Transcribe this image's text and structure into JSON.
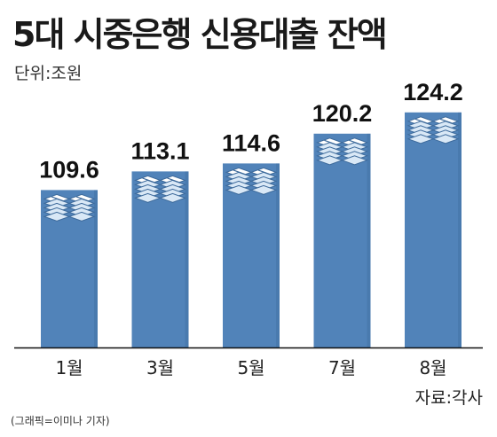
{
  "header": {
    "title": "5대 시중은행 신용대출 잔액",
    "unit": "단위:조원"
  },
  "footer": {
    "source": "자료:각사",
    "credit": "(그래픽=이미나 기자)"
  },
  "colors": {
    "bar": "#5183b9",
    "bar_shadow": "#3d6a9b",
    "baseline": "#111111",
    "money_stack": "#ffffff"
  },
  "icons": {
    "bar_top": "money-stack-icon"
  },
  "chart_data": {
    "type": "bar",
    "title": "5대 시중은행 신용대출 잔액",
    "ylabel": "",
    "xlabel": "",
    "categories": [
      "1월",
      "3월",
      "5월",
      "7월",
      "8월"
    ],
    "values": [
      109.6,
      113.1,
      114.6,
      120.2,
      124.2
    ],
    "value_labels": [
      "109.6",
      "113.1",
      "114.6",
      "120.2",
      "124.2"
    ],
    "ylim": [
      80,
      127
    ],
    "grid": false,
    "legend": "none"
  }
}
